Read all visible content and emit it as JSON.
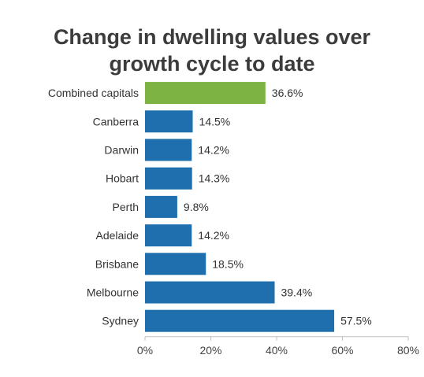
{
  "chart_data": {
    "type": "bar",
    "orientation": "horizontal",
    "title_lines": [
      "Change in dwelling values over",
      "growth cycle to date"
    ],
    "categories": [
      "Combined capitals",
      "Canberra",
      "Darwin",
      "Hobart",
      "Perth",
      "Adelaide",
      "Brisbane",
      "Melbourne",
      "Sydney"
    ],
    "values": [
      36.6,
      14.5,
      14.2,
      14.3,
      9.8,
      14.2,
      18.5,
      39.4,
      57.5
    ],
    "value_labels": [
      "36.6%",
      "14.5%",
      "14.2%",
      "14.3%",
      "9.8%",
      "14.2%",
      "18.5%",
      "39.4%",
      "57.5%"
    ],
    "colors": [
      "#7cb342",
      "#1f6fae",
      "#1f6fae",
      "#1f6fae",
      "#1f6fae",
      "#1f6fae",
      "#1f6fae",
      "#1f6fae",
      "#1f6fae"
    ],
    "xlim": [
      0,
      80
    ],
    "x_ticks": [
      "0%",
      "20%",
      "40%",
      "60%",
      "80%"
    ],
    "xlabel": "",
    "ylabel": "",
    "grid": false,
    "legend": "none"
  }
}
